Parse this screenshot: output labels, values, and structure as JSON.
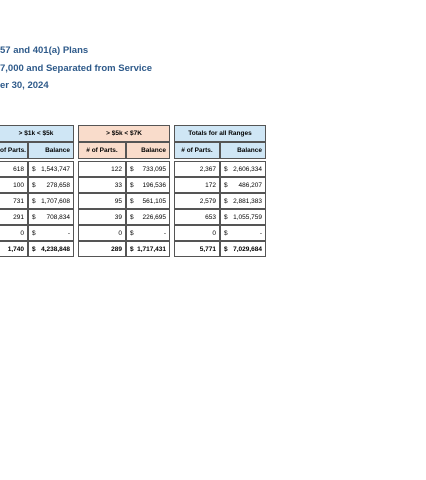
{
  "header": {
    "lines": [
      "57 and 401(a) Plans",
      "7,000 and Separated from Service",
      "er 30, 2024"
    ]
  },
  "table": {
    "groups": [
      "> $1k < $5k",
      "> $5k < $7K",
      "Totals for all Ranges"
    ],
    "columns": [
      "of Parts.",
      "Balance",
      "# of Parts.",
      "Balance",
      "# of Parts.",
      "Balance"
    ],
    "rows": [
      [
        "618",
        {
          "symbol": "$",
          "amount": "1,543,747"
        },
        "122",
        {
          "symbol": "$",
          "amount": "733,095"
        },
        "2,367",
        {
          "symbol": "$",
          "amount": "2,606,334"
        }
      ],
      [
        "100",
        {
          "symbol": "$",
          "amount": "278,658"
        },
        "33",
        {
          "symbol": "$",
          "amount": "196,536"
        },
        "172",
        {
          "symbol": "$",
          "amount": "486,207"
        }
      ],
      [
        "731",
        {
          "symbol": "$",
          "amount": "1,707,608"
        },
        "95",
        {
          "symbol": "$",
          "amount": "561,105"
        },
        "2,579",
        {
          "symbol": "$",
          "amount": "2,881,383"
        }
      ],
      [
        "291",
        {
          "symbol": "$",
          "amount": "708,834"
        },
        "39",
        {
          "symbol": "$",
          "amount": "226,695"
        },
        "653",
        {
          "symbol": "$",
          "amount": "1,055,759"
        }
      ],
      [
        "0",
        {
          "symbol": "$",
          "amount": "-"
        },
        "0",
        {
          "symbol": "$",
          "amount": "-"
        },
        "0",
        {
          "symbol": "$",
          "amount": "-"
        }
      ]
    ],
    "totals": [
      "1,740",
      {
        "symbol": "$",
        "amount": "4,238,848"
      },
      "289",
      {
        "symbol": "$",
        "amount": "1,717,431"
      },
      "5,771",
      {
        "symbol": "$",
        "amount": "7,029,684"
      }
    ]
  }
}
